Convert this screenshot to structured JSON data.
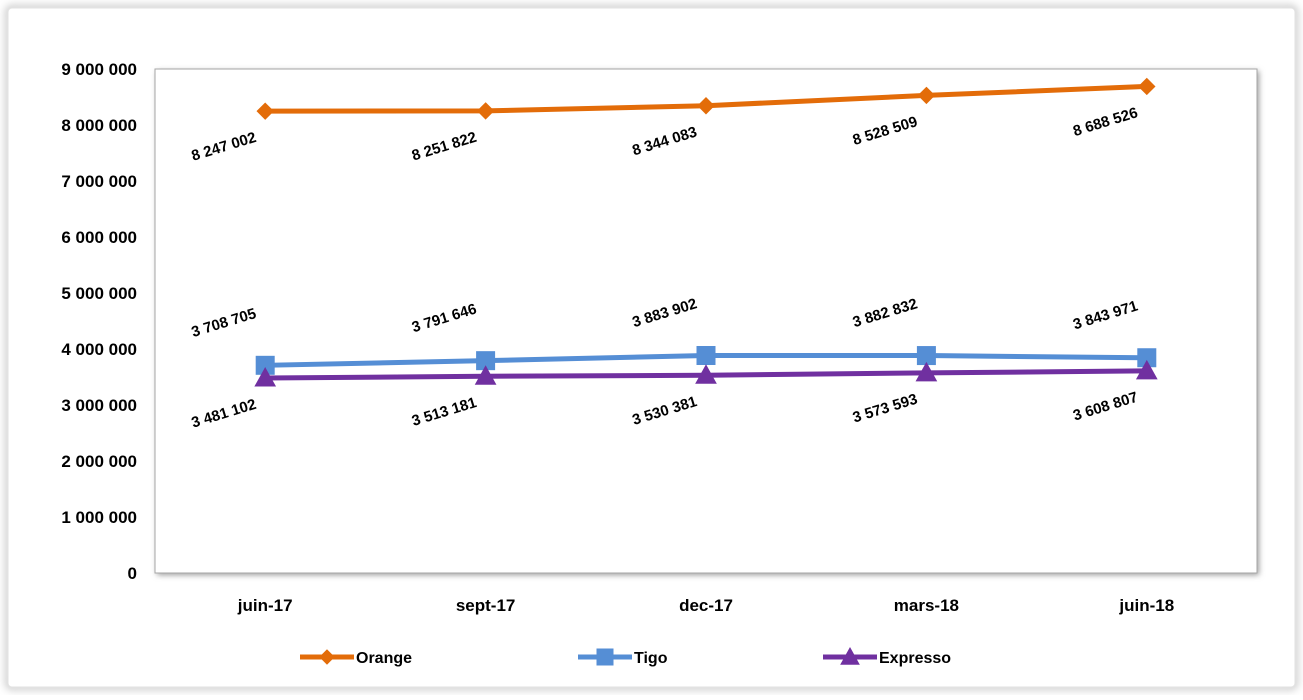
{
  "chart_data": {
    "type": "line",
    "title": "",
    "xlabel": "",
    "ylabel": "",
    "categories": [
      "juin-17",
      "sept-17",
      "dec-17",
      "mars-18",
      "juin-18"
    ],
    "ylim": [
      0,
      9000000
    ],
    "yticks": [
      0,
      1000000,
      2000000,
      3000000,
      4000000,
      5000000,
      6000000,
      7000000,
      8000000,
      9000000
    ],
    "ytick_labels": [
      "0",
      "1 000 000",
      "2 000 000",
      "3 000 000",
      "4 000 000",
      "5 000 000",
      "6 000 000",
      "7 000 000",
      "8 000 000",
      "9 000 000"
    ],
    "grid": false,
    "legend_position": "bottom",
    "series": [
      {
        "name": "Orange",
        "color": "#E36C09",
        "marker": "diamond",
        "values": [
          8247002,
          8251822,
          8344083,
          8528509,
          8688526
        ],
        "labels": [
          "8 247 002",
          "8 251 822",
          "8 344 083",
          "8 528 509",
          "8 688 526"
        ],
        "label_position": "below"
      },
      {
        "name": "Tigo",
        "color": "#558ED5",
        "marker": "square",
        "values": [
          3708705,
          3791646,
          3883902,
          3882832,
          3843971
        ],
        "labels": [
          "3 708 705",
          "3 791 646",
          "3 883 902",
          "3 882 832",
          "3 843 971"
        ],
        "label_position": "above"
      },
      {
        "name": "Expresso",
        "color": "#7030A0",
        "marker": "triangle",
        "values": [
          3481102,
          3513181,
          3530381,
          3573593,
          3608807
        ],
        "labels": [
          "3 481 102",
          "3 513 181",
          "3 530 381",
          "3 573 593",
          "3 608 807"
        ],
        "label_position": "below"
      }
    ]
  }
}
